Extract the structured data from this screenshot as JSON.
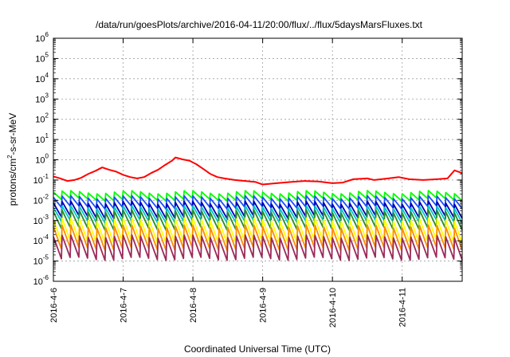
{
  "chart_data": {
    "type": "line",
    "title": "/data/run/goesPlots/archive/2016-04-11/20:00/flux/../flux/5daysMarsFluxes.txt",
    "xlabel": "Coordinated Universal Time (UTC)",
    "ylabel_parts": [
      "protons/cm",
      "2",
      "-s-sr-MeV"
    ],
    "yscale": "log",
    "ylim": [
      1e-06,
      1000000.0
    ],
    "y_ticks": [
      {
        "base": "10",
        "exp": "-6"
      },
      {
        "base": "10",
        "exp": "-5"
      },
      {
        "base": "10",
        "exp": "-4"
      },
      {
        "base": "10",
        "exp": "-3"
      },
      {
        "base": "10",
        "exp": "-2"
      },
      {
        "base": "10",
        "exp": "-1"
      },
      {
        "base": "10",
        "exp": "0"
      },
      {
        "base": "10",
        "exp": "1"
      },
      {
        "base": "10",
        "exp": "2"
      },
      {
        "base": "10",
        "exp": "3"
      },
      {
        "base": "10",
        "exp": "4"
      },
      {
        "base": "10",
        "exp": "5"
      },
      {
        "base": "10",
        "exp": "6"
      }
    ],
    "x_ticks": [
      "2016-4-6",
      "2016-4-7",
      "2016-4-8",
      "2016-4-9",
      "2016-4-10",
      "2016-4-11"
    ],
    "x_range_days": [
      0,
      5.86
    ],
    "grid": true,
    "sawtooth_period_days": 0.125,
    "red_series": [
      [
        0.0,
        0.15
      ],
      [
        0.1,
        0.12
      ],
      [
        0.2,
        0.09
      ],
      [
        0.3,
        0.1
      ],
      [
        0.4,
        0.13
      ],
      [
        0.5,
        0.2
      ],
      [
        0.6,
        0.28
      ],
      [
        0.7,
        0.42
      ],
      [
        0.8,
        0.32
      ],
      [
        0.9,
        0.26
      ],
      [
        1.0,
        0.18
      ],
      [
        1.1,
        0.14
      ],
      [
        1.2,
        0.12
      ],
      [
        1.3,
        0.14
      ],
      [
        1.4,
        0.22
      ],
      [
        1.5,
        0.32
      ],
      [
        1.6,
        0.55
      ],
      [
        1.7,
        0.9
      ],
      [
        1.75,
        1.3
      ],
      [
        1.85,
        1.05
      ],
      [
        1.95,
        0.9
      ],
      [
        2.05,
        0.6
      ],
      [
        2.15,
        0.35
      ],
      [
        2.25,
        0.2
      ],
      [
        2.35,
        0.14
      ],
      [
        2.45,
        0.12
      ],
      [
        2.6,
        0.1
      ],
      [
        2.75,
        0.09
      ],
      [
        2.9,
        0.08
      ],
      [
        3.0,
        0.06
      ],
      [
        3.2,
        0.07
      ],
      [
        3.4,
        0.08
      ],
      [
        3.6,
        0.09
      ],
      [
        3.8,
        0.085
      ],
      [
        4.0,
        0.07
      ],
      [
        4.15,
        0.075
      ],
      [
        4.3,
        0.11
      ],
      [
        4.5,
        0.12
      ],
      [
        4.6,
        0.1
      ],
      [
        4.8,
        0.12
      ],
      [
        4.95,
        0.14
      ],
      [
        5.1,
        0.11
      ],
      [
        5.3,
        0.1
      ],
      [
        5.5,
        0.11
      ],
      [
        5.65,
        0.12
      ],
      [
        5.75,
        0.3
      ],
      [
        5.86,
        0.22
      ]
    ],
    "series": [
      {
        "color": "#ff0000",
        "values": "red_series"
      },
      {
        "color": "#00ff00",
        "peak": 0.025,
        "trough": 0.011
      },
      {
        "color": "#1a4fff",
        "peak": 0.014,
        "trough": 0.0045
      },
      {
        "color": "#0000b4",
        "peak": 0.0075,
        "trough": 0.0015
      },
      {
        "color": "#00c8c8",
        "peak": 0.0045,
        "trough": 0.0009
      },
      {
        "color": "#2a8a2a",
        "peak": 0.0028,
        "trough": 0.0004
      },
      {
        "color": "#ffff00",
        "peak": 0.0011,
        "trough": 9e-05
      },
      {
        "color": "#ff8c00",
        "peak": 0.0005,
        "trough": 4e-05
      },
      {
        "color": "#9b2a5a",
        "peak": 0.00016,
        "trough": 1.3e-05
      }
    ]
  }
}
